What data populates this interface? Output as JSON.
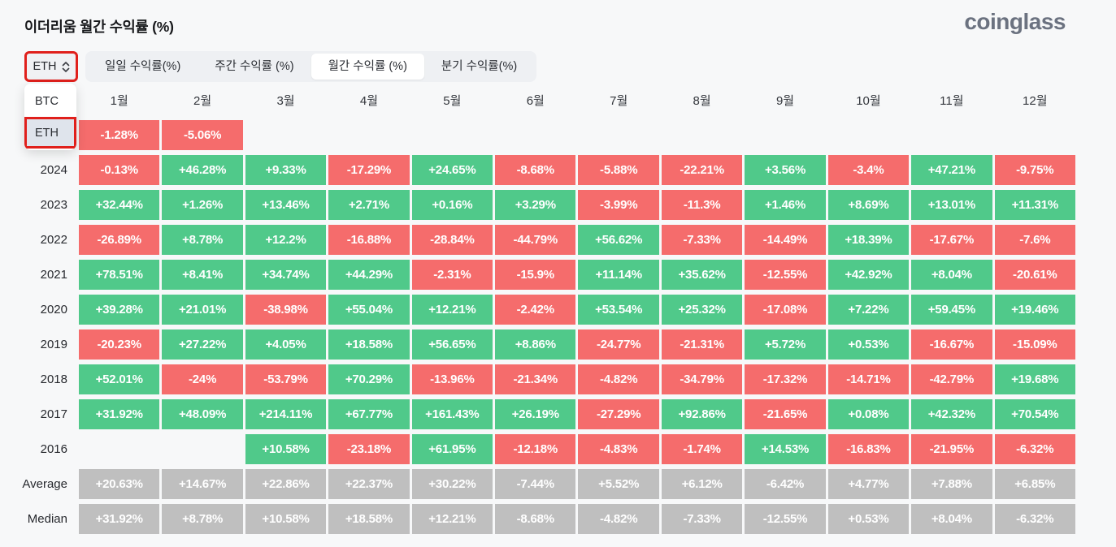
{
  "page": {
    "title": "이더리움 월간 수익률 (%)",
    "brand": "coinglass"
  },
  "colors": {
    "positive": "#50c98a",
    "negative": "#f56c6c",
    "summary": "#bfbfbf",
    "annotation": "#e0201c",
    "background": "#f7f8f9"
  },
  "controls": {
    "symbol_select": {
      "value": "ETH",
      "options": [
        "BTC",
        "ETH"
      ],
      "selected_option": "ETH"
    },
    "tabs": [
      {
        "label": "일일 수익률(%)",
        "active": false
      },
      {
        "label": "주간 수익률 (%)",
        "active": false
      },
      {
        "label": "월간 수익률 (%)",
        "active": true
      },
      {
        "label": "분기 수익률(%)",
        "active": false
      }
    ]
  },
  "chart_data": {
    "type": "heatmap",
    "title": "이더리움 월간 수익률 (%)",
    "month_headers": [
      "1월",
      "2월",
      "3월",
      "4월",
      "5월",
      "6월",
      "7월",
      "8월",
      "9월",
      "10월",
      "11월",
      "12월"
    ],
    "rows": [
      {
        "label": "",
        "summary": false,
        "cells": [
          "-1.28%",
          "-5.06%",
          null,
          null,
          null,
          null,
          null,
          null,
          null,
          null,
          null,
          null
        ]
      },
      {
        "label": "2024",
        "summary": false,
        "cells": [
          "-0.13%",
          "+46.28%",
          "+9.33%",
          "-17.29%",
          "+24.65%",
          "-8.68%",
          "-5.88%",
          "-22.21%",
          "+3.56%",
          "-3.4%",
          "+47.21%",
          "-9.75%"
        ]
      },
      {
        "label": "2023",
        "summary": false,
        "cells": [
          "+32.44%",
          "+1.26%",
          "+13.46%",
          "+2.71%",
          "+0.16%",
          "+3.29%",
          "-3.99%",
          "-11.3%",
          "+1.46%",
          "+8.69%",
          "+13.01%",
          "+11.31%"
        ]
      },
      {
        "label": "2022",
        "summary": false,
        "cells": [
          "-26.89%",
          "+8.78%",
          "+12.2%",
          "-16.88%",
          "-28.84%",
          "-44.79%",
          "+56.62%",
          "-7.33%",
          "-14.49%",
          "+18.39%",
          "-17.67%",
          "-7.6%"
        ]
      },
      {
        "label": "2021",
        "summary": false,
        "cells": [
          "+78.51%",
          "+8.41%",
          "+34.74%",
          "+44.29%",
          "-2.31%",
          "-15.9%",
          "+11.14%",
          "+35.62%",
          "-12.55%",
          "+42.92%",
          "+8.04%",
          "-20.61%"
        ]
      },
      {
        "label": "2020",
        "summary": false,
        "cells": [
          "+39.28%",
          "+21.01%",
          "-38.98%",
          "+55.04%",
          "+12.21%",
          "-2.42%",
          "+53.54%",
          "+25.32%",
          "-17.08%",
          "+7.22%",
          "+59.45%",
          "+19.46%"
        ]
      },
      {
        "label": "2019",
        "summary": false,
        "cells": [
          "-20.23%",
          "+27.22%",
          "+4.05%",
          "+18.58%",
          "+56.65%",
          "+8.86%",
          "-24.77%",
          "-21.31%",
          "+5.72%",
          "+0.53%",
          "-16.67%",
          "-15.09%"
        ]
      },
      {
        "label": "2018",
        "summary": false,
        "cells": [
          "+52.01%",
          "-24%",
          "-53.79%",
          "+70.29%",
          "-13.96%",
          "-21.34%",
          "-4.82%",
          "-34.79%",
          "-17.32%",
          "-14.71%",
          "-42.79%",
          "+19.68%"
        ]
      },
      {
        "label": "2017",
        "summary": false,
        "cells": [
          "+31.92%",
          "+48.09%",
          "+214.11%",
          "+67.77%",
          "+161.43%",
          "+26.19%",
          "-27.29%",
          "+92.86%",
          "-21.65%",
          "+0.08%",
          "+42.32%",
          "+70.54%"
        ]
      },
      {
        "label": "2016",
        "summary": false,
        "cells": [
          null,
          null,
          "+10.58%",
          "-23.18%",
          "+61.95%",
          "-12.18%",
          "-4.83%",
          "-1.74%",
          "+14.53%",
          "-16.83%",
          "-21.95%",
          "-6.32%"
        ]
      },
      {
        "label": "Average",
        "summary": true,
        "cells": [
          "+20.63%",
          "+14.67%",
          "+22.86%",
          "+22.37%",
          "+30.22%",
          "-7.44%",
          "+5.52%",
          "+6.12%",
          "-6.42%",
          "+4.77%",
          "+7.88%",
          "+6.85%"
        ]
      },
      {
        "label": "Median",
        "summary": true,
        "cells": [
          "+31.92%",
          "+8.78%",
          "+10.58%",
          "+18.58%",
          "+12.21%",
          "-8.68%",
          "-4.82%",
          "-7.33%",
          "-12.55%",
          "+0.53%",
          "+8.04%",
          "-6.32%"
        ]
      }
    ]
  }
}
